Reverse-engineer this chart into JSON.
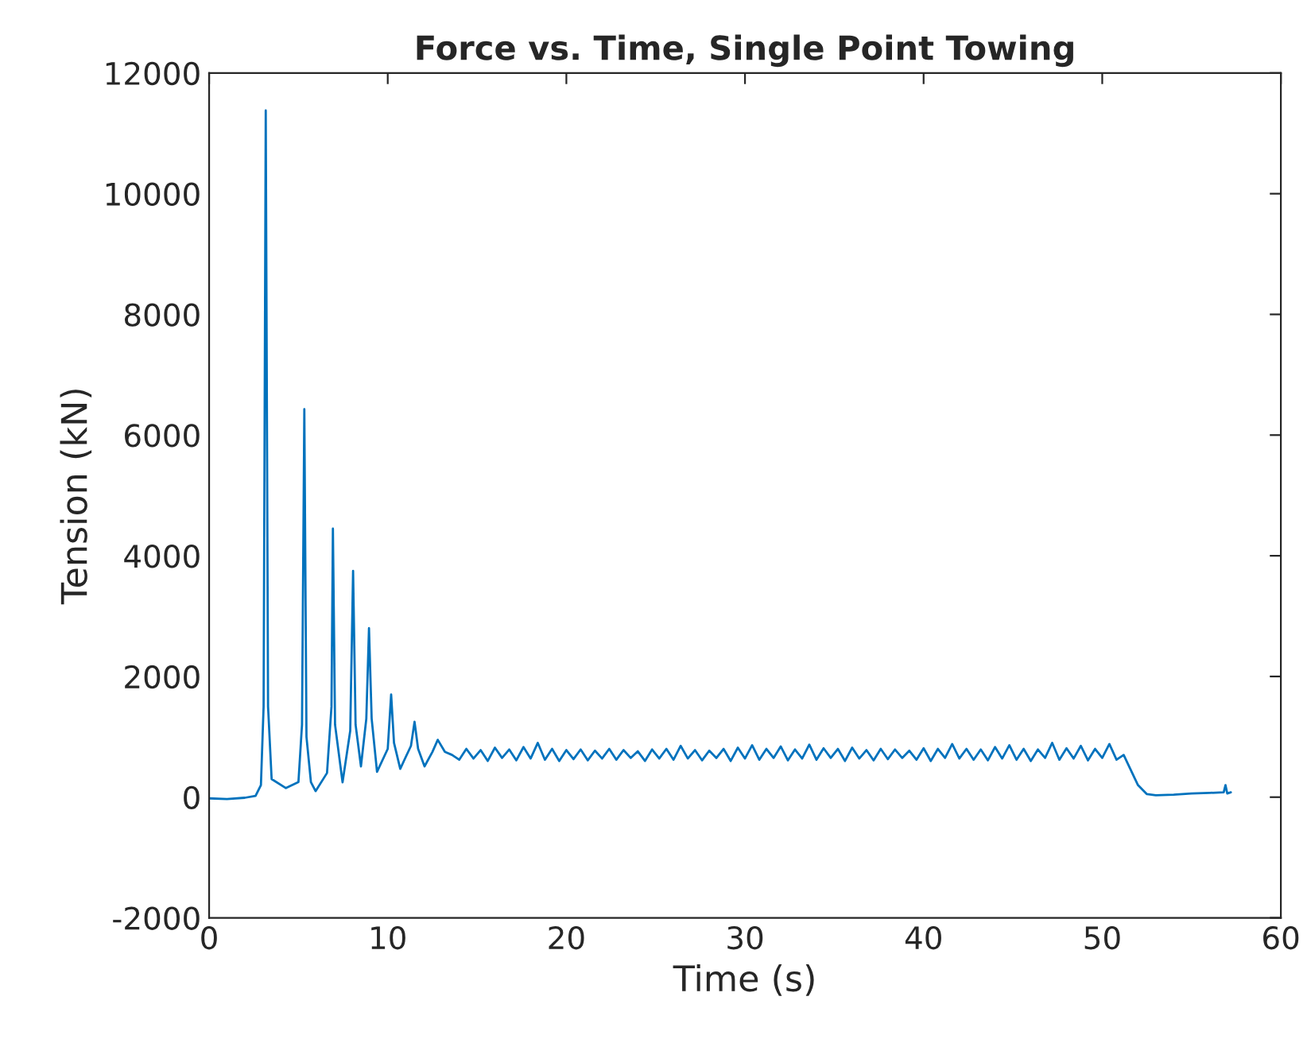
{
  "chart_data": {
    "type": "line",
    "title": "Force vs. Time, Single Point Towing",
    "xlabel": "Time (s)",
    "ylabel": "Tension (kN)",
    "x": [
      0,
      1,
      2,
      2.6,
      2.9,
      3.05,
      3.17,
      3.3,
      3.5,
      4.3,
      5.0,
      5.2,
      5.33,
      5.45,
      5.7,
      5.96,
      6.6,
      6.85,
      6.93,
      7.05,
      7.47,
      7.9,
      8.06,
      8.2,
      8.5,
      8.8,
      8.95,
      9.1,
      9.4,
      10.0,
      10.19,
      10.35,
      10.7,
      11.3,
      11.5,
      11.7,
      12.06,
      12.5,
      12.8,
      13.2,
      13.6,
      14.0,
      14.4,
      14.8,
      15.2,
      15.6,
      16.0,
      16.4,
      16.8,
      17.2,
      17.6,
      18.0,
      18.4,
      18.8,
      19.2,
      19.6,
      20.0,
      20.4,
      20.8,
      21.2,
      21.6,
      22.0,
      22.4,
      22.8,
      23.2,
      23.6,
      24.0,
      24.4,
      24.8,
      25.2,
      25.6,
      26.0,
      26.4,
      26.8,
      27.2,
      27.6,
      28.0,
      28.4,
      28.8,
      29.2,
      29.6,
      30.0,
      30.4,
      30.8,
      31.2,
      31.6,
      32.0,
      32.4,
      32.8,
      33.2,
      33.6,
      34.0,
      34.4,
      34.8,
      35.2,
      35.6,
      36.0,
      36.4,
      36.8,
      37.2,
      37.6,
      38.0,
      38.4,
      38.8,
      39.2,
      39.6,
      40.0,
      40.4,
      40.8,
      41.2,
      41.6,
      42.0,
      42.4,
      42.8,
      43.2,
      43.6,
      44.0,
      44.4,
      44.8,
      45.2,
      45.6,
      46.0,
      46.4,
      46.8,
      47.2,
      47.6,
      48.0,
      48.4,
      48.8,
      49.2,
      49.6,
      50.0,
      50.4,
      50.8,
      51.2,
      51.6,
      52.0,
      52.5,
      53.0,
      54.0,
      55.0,
      56.0,
      56.8,
      56.9,
      57.0,
      57.2
    ],
    "series": [
      {
        "color": "#0072bd",
        "values": [
          -20,
          -30,
          -10,
          20,
          200,
          1500,
          11380,
          1500,
          300,
          150,
          250,
          1200,
          6430,
          1000,
          250,
          100,
          400,
          1500,
          4450,
          1200,
          245,
          1100,
          3750,
          1200,
          510,
          1300,
          2800,
          1300,
          420,
          800,
          1700,
          900,
          470,
          850,
          1250,
          800,
          510,
          750,
          950,
          750,
          700,
          620,
          800,
          640,
          780,
          600,
          820,
          650,
          790,
          610,
          830,
          640,
          900,
          620,
          800,
          600,
          780,
          630,
          790,
          610,
          770,
          640,
          800,
          620,
          780,
          650,
          760,
          600,
          790,
          640,
          800,
          620,
          850,
          640,
          780,
          610,
          770,
          650,
          800,
          600,
          820,
          640,
          860,
          620,
          800,
          650,
          840,
          610,
          790,
          640,
          870,
          620,
          810,
          650,
          800,
          600,
          820,
          640,
          780,
          610,
          800,
          630,
          790,
          650,
          770,
          620,
          810,
          600,
          800,
          650,
          880,
          640,
          800,
          620,
          790,
          610,
          830,
          640,
          860,
          620,
          800,
          600,
          790,
          650,
          900,
          620,
          810,
          640,
          850,
          610,
          800,
          650,
          880,
          620,
          700,
          450,
          200,
          50,
          30,
          40,
          60,
          70,
          80,
          200,
          60,
          80
        ]
      }
    ],
    "xlim": [
      0,
      60
    ],
    "xticks": [
      0,
      10,
      20,
      30,
      40,
      50,
      60
    ],
    "ylim": [
      -2000,
      12000
    ],
    "yticks": [
      -2000,
      0,
      2000,
      4000,
      6000,
      8000,
      10000,
      12000
    ],
    "grid": false,
    "legend": false,
    "line_style": "solid",
    "marker": "none"
  }
}
